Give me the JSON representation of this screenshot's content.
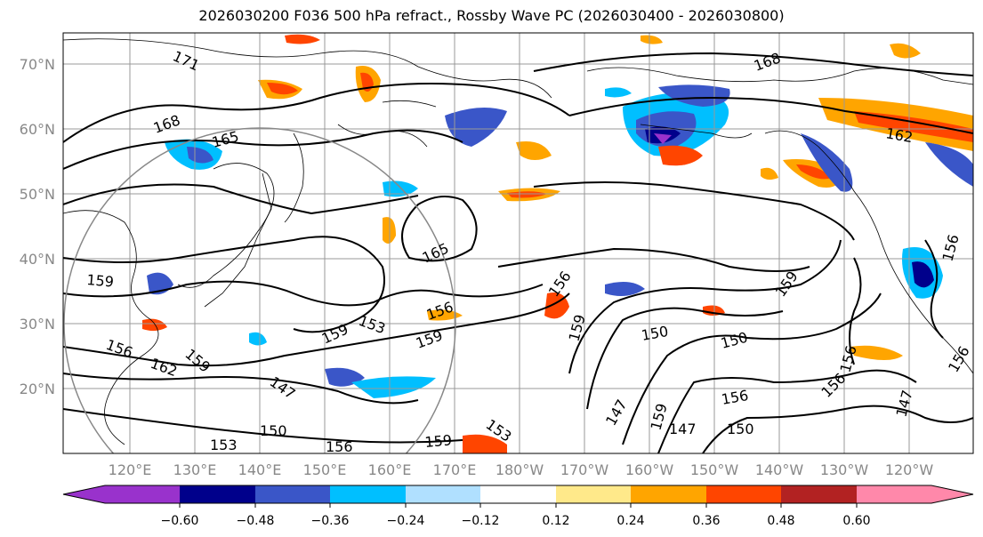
{
  "title": "2026030200 F036 500 hPa refract., Rossby Wave PC (2026030400 - 2026030800)",
  "latitude_labels": [
    "70°N",
    "60°N",
    "50°N",
    "40°N",
    "30°N",
    "20°N"
  ],
  "longitude_labels": [
    "120°E",
    "130°E",
    "140°E",
    "150°E",
    "160°E",
    "170°E",
    "180°W",
    "170°W",
    "160°W",
    "150°W",
    "140°W",
    "130°W",
    "120°W"
  ],
  "contour_labels": [
    "171",
    "168",
    "165",
    "168",
    "162",
    "165",
    "156",
    "159",
    "159",
    "153",
    "156",
    "159",
    "159",
    "150",
    "150",
    "159",
    "156",
    "162",
    "159",
    "147",
    "150",
    "153",
    "156",
    "159",
    "153",
    "147",
    "150",
    "156",
    "156",
    "147",
    "156",
    "147",
    "159",
    "156",
    "156"
  ],
  "colorbar": {
    "tick_labels": [
      "−0.60",
      "−0.48",
      "−0.36",
      "−0.24",
      "−0.12",
      "0.12",
      "0.24",
      "0.36",
      "0.48",
      "0.60"
    ],
    "colors": [
      "#9932cc",
      "#00008b",
      "#3a56c8",
      "#00bfff",
      "#b0e0ff",
      "#ffffff",
      "#ffe98a",
      "#ffa500",
      "#ff4500",
      "#b22222",
      "#ff88aa"
    ]
  }
}
